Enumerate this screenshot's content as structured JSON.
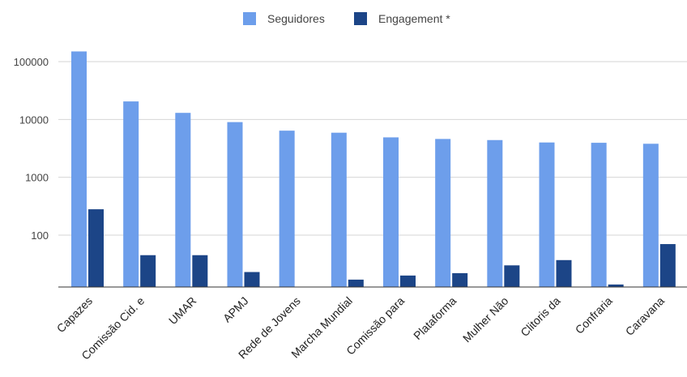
{
  "chart_data": {
    "type": "bar",
    "title": "",
    "xlabel": "",
    "ylabel": "",
    "yscale": "log",
    "ylim": [
      10,
      250000
    ],
    "yticks": [
      100,
      1000,
      10000,
      100000
    ],
    "grid": true,
    "legend_position": "top-center",
    "categories": [
      "Capazes",
      "Comissão Cid. e",
      "UMAR",
      "APMJ",
      "Rede de Jovens",
      "Marcha Mundial",
      "Comissão para",
      "Plataforma",
      "Mulher Não",
      "Clitoris da",
      "Confraria",
      "Caravana"
    ],
    "series": [
      {
        "name": "Seguidores",
        "color": "#6d9eeb",
        "values": [
          150000,
          20500,
          13000,
          9000,
          6400,
          5900,
          4900,
          4600,
          4400,
          4000,
          3950,
          3800
        ]
      },
      {
        "name": "Engagement *",
        "color": "#1c4587",
        "values": [
          280,
          45,
          45,
          23,
          null,
          17,
          20,
          22,
          30,
          37,
          14,
          70
        ]
      }
    ]
  }
}
